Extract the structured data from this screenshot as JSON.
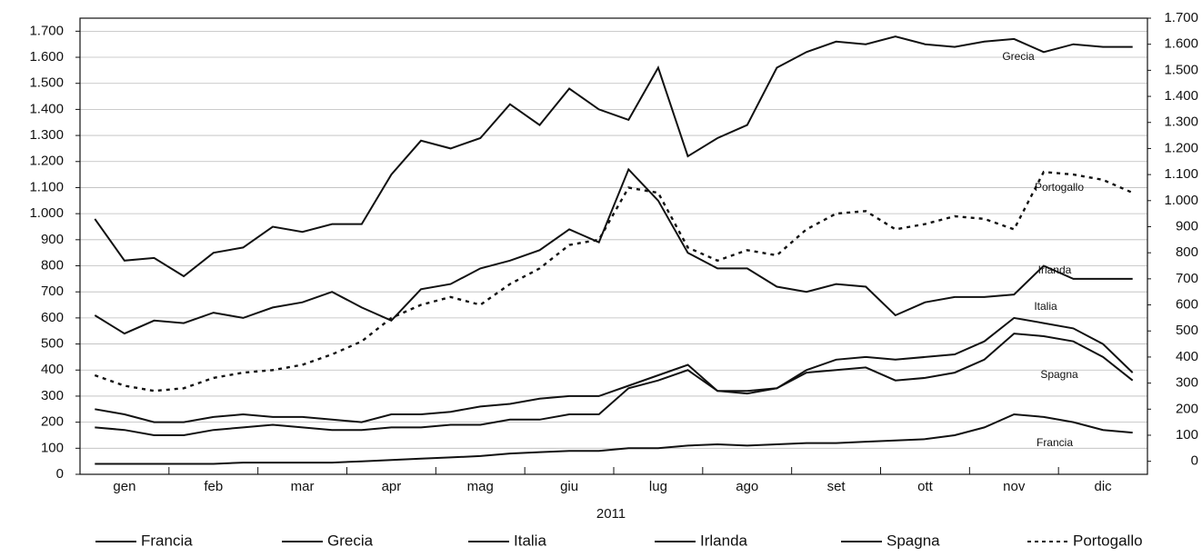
{
  "chart_data": {
    "type": "line",
    "xlabel": "2011",
    "categories": [
      null,
      "gen",
      null,
      null,
      "feb",
      null,
      null,
      "mar",
      null,
      null,
      "apr",
      null,
      null,
      "mag",
      null,
      null,
      "giu",
      null,
      null,
      "lug",
      null,
      null,
      "ago",
      null,
      null,
      "set",
      null,
      null,
      "ott",
      null,
      null,
      "nov",
      null,
      null,
      "dic",
      null
    ],
    "ylim": [
      0,
      1750
    ],
    "yticks": [
      0,
      100,
      200,
      300,
      400,
      500,
      600,
      700,
      800,
      900,
      {
        "value": 1000,
        "label": "1.000"
      },
      {
        "value": 1100,
        "label": "1.100"
      },
      {
        "value": 1200,
        "label": "1.200"
      },
      {
        "value": 1300,
        "label": "1.300"
      },
      {
        "value": 1400,
        "label": "1.400"
      },
      {
        "value": 1500,
        "label": "1.500"
      },
      {
        "value": 1600,
        "label": "1.600"
      },
      {
        "value": 1700,
        "label": "1.700"
      }
    ],
    "y2lim": [
      -50,
      1700
    ],
    "y2ticks": [
      0,
      100,
      200,
      300,
      400,
      500,
      600,
      700,
      800,
      900,
      {
        "value": 1000,
        "label": "1.000"
      },
      {
        "value": 1100,
        "label": "1.100"
      },
      {
        "value": 1200,
        "label": "1.200"
      },
      {
        "value": 1300,
        "label": "1.300"
      },
      {
        "value": 1400,
        "label": "1.400"
      },
      {
        "value": 1500,
        "label": "1.500"
      },
      {
        "value": 1600,
        "label": "1.600"
      },
      {
        "value": 1700,
        "label": "1.700"
      }
    ],
    "grid": true,
    "series": [
      {
        "name": "Francia",
        "color": "#111111",
        "style": "solid",
        "values": [
          40,
          40,
          40,
          40,
          40,
          45,
          45,
          45,
          45,
          50,
          55,
          60,
          65,
          70,
          80,
          85,
          90,
          90,
          100,
          100,
          110,
          115,
          110,
          115,
          120,
          120,
          125,
          130,
          135,
          150,
          180,
          230,
          220,
          200,
          170,
          160
        ]
      },
      {
        "name": "Grecia",
        "color": "#111111",
        "style": "solid",
        "values": [
          980,
          820,
          830,
          760,
          850,
          870,
          950,
          930,
          960,
          960,
          1150,
          1280,
          1250,
          1290,
          1420,
          1340,
          1480,
          1400,
          1360,
          1560,
          1220,
          1290,
          1340,
          1560,
          1620,
          1660,
          1650,
          1680,
          1650,
          1640,
          1660,
          1670,
          1620,
          1650,
          1640,
          1640
        ]
      },
      {
        "name": "Italia",
        "color": "#111111",
        "style": "solid",
        "values": [
          180,
          170,
          150,
          150,
          170,
          180,
          190,
          180,
          170,
          170,
          180,
          180,
          190,
          190,
          210,
          210,
          230,
          230,
          330,
          360,
          400,
          320,
          310,
          330,
          400,
          440,
          450,
          440,
          450,
          460,
          510,
          600,
          580,
          560,
          500,
          390
        ]
      },
      {
        "name": "Irlanda",
        "color": "#111111",
        "style": "solid",
        "values": [
          610,
          540,
          590,
          580,
          620,
          600,
          640,
          660,
          700,
          640,
          590,
          710,
          730,
          790,
          820,
          860,
          940,
          890,
          1170,
          1050,
          850,
          790,
          790,
          720,
          700,
          730,
          720,
          610,
          660,
          680,
          680,
          690,
          800,
          750,
          750,
          750
        ]
      },
      {
        "name": "Spagna",
        "color": "#111111",
        "style": "solid",
        "values": [
          250,
          230,
          200,
          200,
          220,
          230,
          220,
          220,
          210,
          200,
          230,
          230,
          240,
          260,
          270,
          290,
          300,
          300,
          340,
          380,
          420,
          320,
          320,
          330,
          390,
          400,
          410,
          360,
          370,
          390,
          440,
          540,
          530,
          510,
          450,
          360
        ]
      },
      {
        "name": "Portogallo",
        "color": "#111111",
        "style": "dashed",
        "values": [
          380,
          340,
          320,
          330,
          370,
          390,
          400,
          420,
          460,
          510,
          600,
          650,
          680,
          650,
          730,
          790,
          880,
          900,
          1100,
          1080,
          870,
          820,
          860,
          840,
          940,
          1000,
          1010,
          940,
          960,
          990,
          980,
          940,
          1160,
          1150,
          1130,
          1080
        ]
      }
    ]
  }
}
